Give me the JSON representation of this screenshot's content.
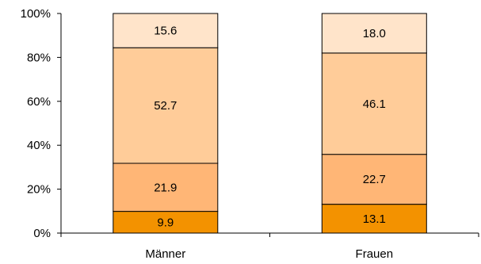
{
  "chart_data": {
    "type": "bar",
    "stacked": true,
    "percent_stacked": true,
    "title": "",
    "xlabel": "",
    "ylabel": "",
    "categories": [
      "Männer",
      "Frauen"
    ],
    "series": [
      {
        "values": [
          9.9,
          13.1
        ],
        "color": "#F39200"
      },
      {
        "values": [
          21.9,
          22.7
        ],
        "color": "#FFB676"
      },
      {
        "values": [
          52.7,
          46.1
        ],
        "color": "#FFCC99"
      },
      {
        "values": [
          15.6,
          18.0
        ],
        "color": "#FFE4CA"
      }
    ],
    "ylim": [
      0,
      100
    ],
    "y_ticks": [
      0,
      20,
      40,
      60,
      80,
      100
    ],
    "y_tick_labels": [
      "0%",
      "20%",
      "40%",
      "60%",
      "80%",
      "100%"
    ],
    "grid": false,
    "legend": "none",
    "value_decimals": 1
  }
}
